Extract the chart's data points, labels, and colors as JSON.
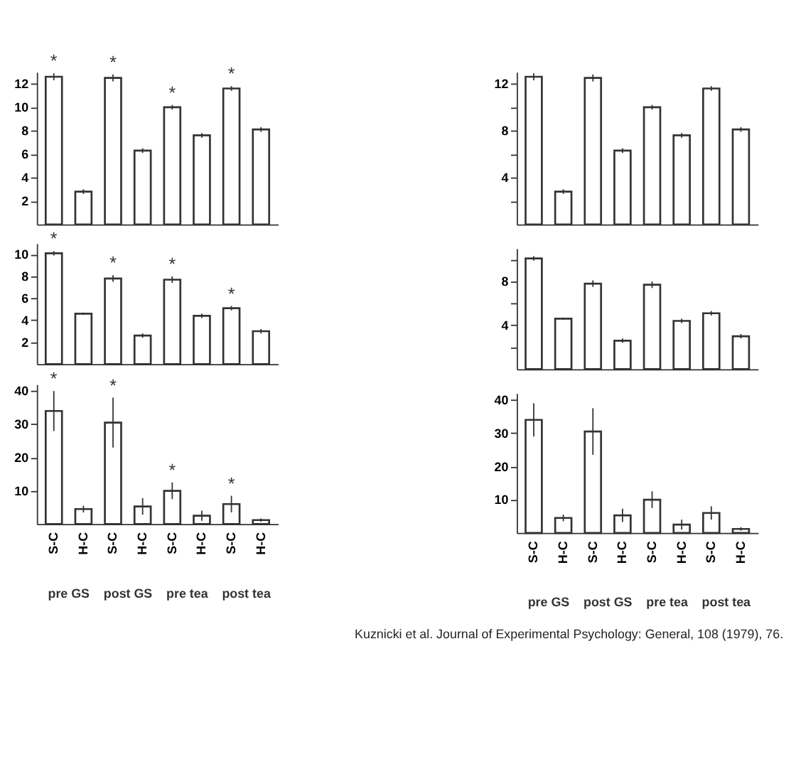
{
  "chart_data": [
    {
      "type": "bar",
      "categories": [
        null,
        null,
        null,
        null,
        null,
        null,
        null,
        null
      ],
      "values": [
        12.6,
        2.8,
        12.5,
        6.3,
        10.0,
        7.6,
        11.6,
        8.1
      ],
      "errors": [
        0.3,
        0.2,
        0.3,
        0.2,
        0.2,
        0.2,
        0.2,
        0.2
      ],
      "value_labels": [
        "*",
        null,
        "*",
        null,
        "*",
        null,
        "*",
        null
      ],
      "color": "#333333",
      "ylim": [
        0,
        13
      ],
      "yticks": [
        2,
        4,
        6,
        8,
        10,
        12
      ],
      "tick_labels": "y"
    },
    {
      "type": "bar",
      "categories": [
        null,
        null,
        null,
        null,
        null,
        null,
        null,
        null
      ],
      "values": [
        10.1,
        4.6,
        7.8,
        2.6,
        7.7,
        4.4,
        5.1,
        3.0
      ],
      "errors": [
        0.2,
        0.1,
        0.3,
        0.2,
        0.3,
        0.2,
        0.2,
        0.2
      ],
      "value_labels": [
        "*",
        null,
        "*",
        null,
        "*",
        null,
        "*",
        null
      ],
      "color": "#333333",
      "ylim": [
        0,
        11
      ],
      "yticks": [
        2,
        4,
        6,
        8,
        10
      ],
      "tick_labels": "y"
    },
    {
      "type": "bar",
      "categories": [
        "S-C",
        "H-C",
        "S-C",
        "H-C",
        "S-C",
        "H-C",
        "S-C",
        "H-C"
      ],
      "values": [
        34,
        4.5,
        30.5,
        5.3,
        10,
        2.5,
        6,
        1.2
      ],
      "errors": [
        6,
        1,
        7.5,
        2.5,
        2.5,
        1.5,
        2.5,
        0.5
      ],
      "value_labels": [
        "*",
        null,
        "*",
        null,
        "*",
        null,
        "*",
        null
      ],
      "color": "#333333",
      "ylim": [
        0,
        42
      ],
      "yticks": [
        10,
        20,
        30,
        40
      ],
      "annotations": [
        "pre GS",
        "post GS",
        "pre tea",
        "post tea"
      ]
    },
    {
      "type": "bar",
      "categories": [
        null,
        null,
        null,
        null,
        null,
        null,
        null,
        null
      ],
      "values": [
        12.6,
        2.8,
        12.5,
        6.3,
        10.0,
        7.6,
        11.6,
        8.1
      ],
      "errors": [
        0.3,
        0.2,
        0.3,
        0.2,
        0.2,
        0.2,
        0.2,
        0.2
      ],
      "color": "#333333",
      "ylim": [
        0,
        13
      ],
      "yticks": [
        {
          "value": 2,
          "label": null
        },
        4,
        {
          "value": 6,
          "label": null
        },
        8,
        {
          "value": 10,
          "label": null
        },
        12
      ],
      "tick_labels": "y"
    },
    {
      "type": "bar",
      "categories": [
        null,
        null,
        null,
        null,
        null,
        null,
        null,
        null
      ],
      "values": [
        10.1,
        4.6,
        7.8,
        2.6,
        7.7,
        4.4,
        5.1,
        3.0
      ],
      "errors": [
        0.2,
        0.1,
        0.3,
        0.2,
        0.3,
        0.2,
        0.2,
        0.2
      ],
      "color": "#333333",
      "ylim": [
        0,
        11
      ],
      "yticks": [
        {
          "value": 2,
          "label": null
        },
        4,
        {
          "value": 6,
          "label": null
        },
        8,
        {
          "value": 10,
          "label": null
        }
      ],
      "tick_labels": "y"
    },
    {
      "type": "bar",
      "categories": [
        "S-C",
        "H-C",
        "S-C",
        "H-C",
        "S-C",
        "H-C",
        "S-C",
        "H-C"
      ],
      "values": [
        34,
        4.5,
        30.5,
        5.3,
        10,
        2.5,
        6,
        1.2
      ],
      "errors": [
        5,
        1,
        7,
        2,
        2.5,
        1.5,
        2,
        0.5
      ],
      "color": "#333333",
      "ylim": [
        0,
        42
      ],
      "yticks": [
        10,
        20,
        30,
        40
      ],
      "annotations": [
        "pre GS",
        "post GS",
        "pre tea",
        "post tea",
        "Kuznicki et al. Journal of Experimental Psychology: General, 108 (1979), 76."
      ]
    }
  ]
}
